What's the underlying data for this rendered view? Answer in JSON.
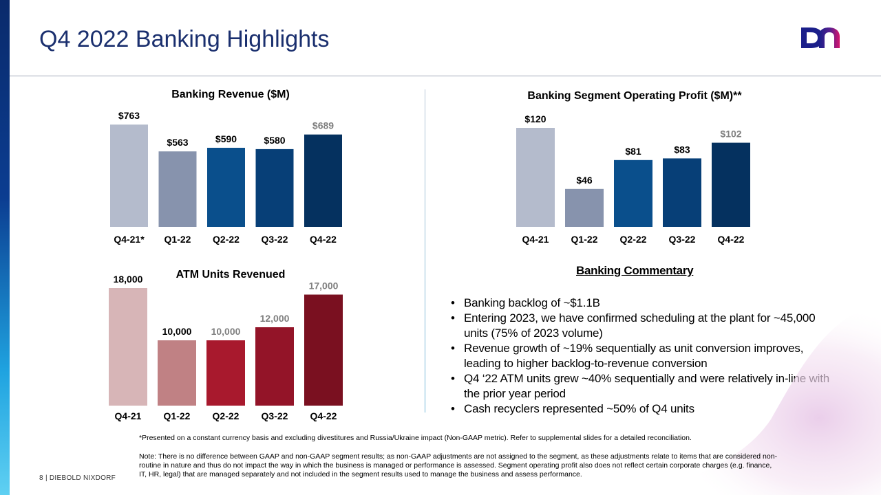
{
  "slide": {
    "title": "Q4 2022 Banking Highlights",
    "page_footer": "8  |  DIEBOLD  NIXDORF",
    "logo": "diebold-nixdorf-dn-logo",
    "commentary_title": "Banking Commentary",
    "commentary": [
      "Banking backlog of ~$1.1B",
      "Entering 2023, we have confirmed scheduling at the plant for ~45,000 units (75% of 2023 volume)",
      "Revenue growth of ~19% sequentially as unit conversion improves, leading to higher backlog-to-revenue conversion",
      "Q4 ‘22 ATM units grew ~40% sequentially and were relatively in-line with the prior year period",
      "Cash recyclers represented ~50% of Q4 units"
    ],
    "footnote": "*Presented on a constant currency basis and excluding divestitures and Russia/Ukraine impact (Non-GAAP metric). Refer to supplemental slides for a detailed reconciliation.",
    "note": "Note: There is no difference between GAAP  and non-GAAP  segment results; as non-GAAP adjustments are not assigned to the segment, as these adjustments relate to items that are considered non-routine in nature and thus do not impact the way in which the business is managed or performance is assessed. Segment operating profit also does not reflect certain corporate charges (e.g. finance, IT, HR, legal) that are managed separately and not included in the segment results used to manage the business and assess performance."
  },
  "chart_data": [
    {
      "id": "revenue",
      "type": "bar",
      "title": "Banking Revenue ($M)",
      "categories": [
        "Q4-21*",
        "Q1-22",
        "Q2-22",
        "Q3-22",
        "Q4-22"
      ],
      "values": [
        763,
        563,
        590,
        580,
        689
      ],
      "labels": [
        "$763",
        "$563",
        "$590",
        "$580",
        "$689"
      ],
      "colors": [
        "#b4bbcc",
        "#8793ad",
        "#0a4f8c",
        "#073f77",
        "#05315f"
      ],
      "label_colors": [
        "#000000",
        "#000000",
        "#000000",
        "#000000",
        "#7f7f7f"
      ],
      "ylim": [
        0,
        800
      ]
    },
    {
      "id": "profit",
      "type": "bar",
      "title": "Banking Segment Operating Profit ($M)**",
      "categories": [
        "Q4-21",
        "Q1-22",
        "Q2-22",
        "Q3-22",
        "Q4-22"
      ],
      "values": [
        120,
        46,
        81,
        83,
        102
      ],
      "labels": [
        "$120",
        "$46",
        "$81",
        "$83",
        "$102"
      ],
      "colors": [
        "#b4bbcc",
        "#8793ad",
        "#0a4f8c",
        "#073f77",
        "#05315f"
      ],
      "label_colors": [
        "#000000",
        "#000000",
        "#000000",
        "#000000",
        "#7f7f7f"
      ],
      "ylim": [
        0,
        125
      ]
    },
    {
      "id": "units",
      "type": "bar",
      "title": "ATM Units Revenued",
      "categories": [
        "Q4-21",
        "Q1-22",
        "Q2-22",
        "Q3-22",
        "Q4-22"
      ],
      "values": [
        18000,
        10000,
        10000,
        12000,
        17000
      ],
      "labels": [
        "18,000",
        "10,000",
        "10,000",
        "12,000",
        "17,000"
      ],
      "colors": [
        "#d7b5b7",
        "#c08184",
        "#a8192d",
        "#931428",
        "#7a1020"
      ],
      "label_colors": [
        "#000000",
        "#000000",
        "#7f7f7f",
        "#7f7f7f",
        "#7f7f7f"
      ],
      "ylim": [
        0,
        18000
      ]
    }
  ]
}
